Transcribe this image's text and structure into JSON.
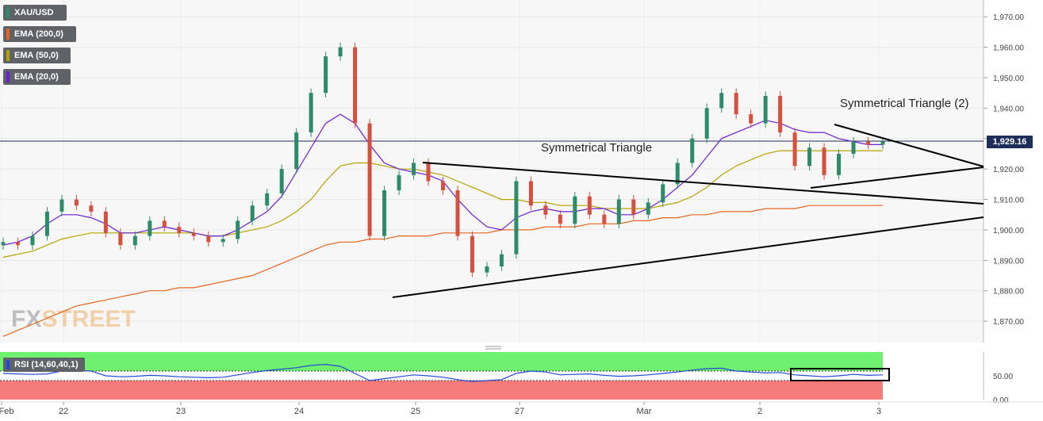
{
  "legend": {
    "symbol": "XAU/USD",
    "ema200": {
      "label": "EMA (200,0)",
      "color": "#e8641e"
    },
    "ema50": {
      "label": "EMA (50,0)",
      "color": "#b5a200"
    },
    "ema20": {
      "label": "EMA (20,0)",
      "color": "#6a1fd0"
    }
  },
  "watermark": {
    "fx": "FX",
    "street": "STREET"
  },
  "current_price": "1,929.16",
  "rsi": {
    "label": "RSI (14,60,40,1)",
    "color": "#2248d8",
    "upper_zone_color": "#6ff06f",
    "lower_zone_color": "#f57a7a"
  },
  "colors": {
    "up": "#2e8b6a",
    "down": "#d5503f",
    "trendline": "#000000",
    "price_line": "#1e2e5a",
    "grid": "#e8e8e8"
  },
  "chart_data": {
    "type": "candlestick",
    "y_axis": {
      "ticks": [
        "1,970.00",
        "1,960.00",
        "1,950.00",
        "1,940.00",
        "1,930.00",
        "1,920.00",
        "1,910.00",
        "1,900.00",
        "1,890.00",
        "1,880.00",
        "1,870.00"
      ],
      "range": [
        1863,
        1975
      ]
    },
    "x_axis": {
      "ticks": [
        "Feb",
        "22",
        "23",
        "24",
        "25",
        "27",
        "Mar",
        "2",
        "3"
      ]
    },
    "rsi_axis": {
      "ticks": [
        "50.00",
        "0.00"
      ],
      "range": [
        0,
        100
      ],
      "upper": 60,
      "lower": 40
    },
    "annotations": [
      {
        "text": "Symmetrical Triangle"
      },
      {
        "text": "Symmetrical Triangle (2)"
      }
    ],
    "current_price": 1929.16,
    "ema20": [
      1895,
      1896,
      1898,
      1902,
      1905,
      1905,
      1904,
      1902,
      1899,
      1899,
      1900,
      1901,
      1900,
      1899,
      1898,
      1898,
      1900,
      1903,
      1906,
      1911,
      1919,
      1927,
      1935,
      1938,
      1935,
      1928,
      1922,
      1920,
      1919,
      1918,
      1916,
      1910,
      1905,
      1901,
      1900,
      1904,
      1906,
      1907,
      1906,
      1906,
      1907,
      1907,
      1905,
      1905,
      1907,
      1910,
      1914,
      1918,
      1924,
      1930,
      1932,
      1934,
      1936,
      1935,
      1933,
      1932,
      1932,
      1930,
      1929,
      1928,
      1928
    ],
    "ema50": [
      1891,
      1892,
      1893,
      1895,
      1897,
      1898,
      1899,
      1899,
      1899,
      1899,
      1899,
      1899,
      1899,
      1899,
      1898,
      1898,
      1899,
      1900,
      1901,
      1903,
      1906,
      1910,
      1916,
      1921,
      1922,
      1922,
      1921,
      1920,
      1920,
      1919,
      1918,
      1916,
      1914,
      1912,
      1910,
      1910,
      1909,
      1909,
      1908,
      1908,
      1908,
      1907,
      1907,
      1907,
      1907,
      1908,
      1909,
      1911,
      1914,
      1918,
      1921,
      1923,
      1925,
      1926,
      1926,
      1926,
      1926,
      1926,
      1926,
      1926,
      1926
    ],
    "ema200": [
      1865,
      1867,
      1869,
      1871,
      1873,
      1875,
      1876,
      1877,
      1878,
      1879,
      1880,
      1880,
      1881,
      1881,
      1882,
      1883,
      1884,
      1885,
      1887,
      1889,
      1891,
      1893,
      1895,
      1896,
      1896,
      1897,
      1897,
      1898,
      1898,
      1898,
      1899,
      1899,
      1899,
      1899,
      1900,
      1900,
      1900,
      1901,
      1901,
      1901,
      1902,
      1902,
      1902,
      1903,
      1903,
      1904,
      1904,
      1905,
      1905,
      1906,
      1906,
      1906,
      1907,
      1907,
      1907,
      1908,
      1908,
      1908,
      1908,
      1908,
      1908
    ],
    "rsi": [
      55,
      54,
      53,
      54,
      60,
      62,
      60,
      50,
      48,
      49,
      51,
      50,
      48,
      47,
      46,
      47,
      52,
      57,
      61,
      64,
      67,
      72,
      74,
      70,
      55,
      40,
      44,
      48,
      52,
      50,
      47,
      42,
      38,
      40,
      42,
      55,
      60,
      58,
      52,
      53,
      54,
      51,
      49,
      50,
      52,
      55,
      58,
      62,
      65,
      66,
      60,
      58,
      56,
      57,
      52,
      50,
      48,
      50,
      53,
      51,
      52
    ]
  }
}
